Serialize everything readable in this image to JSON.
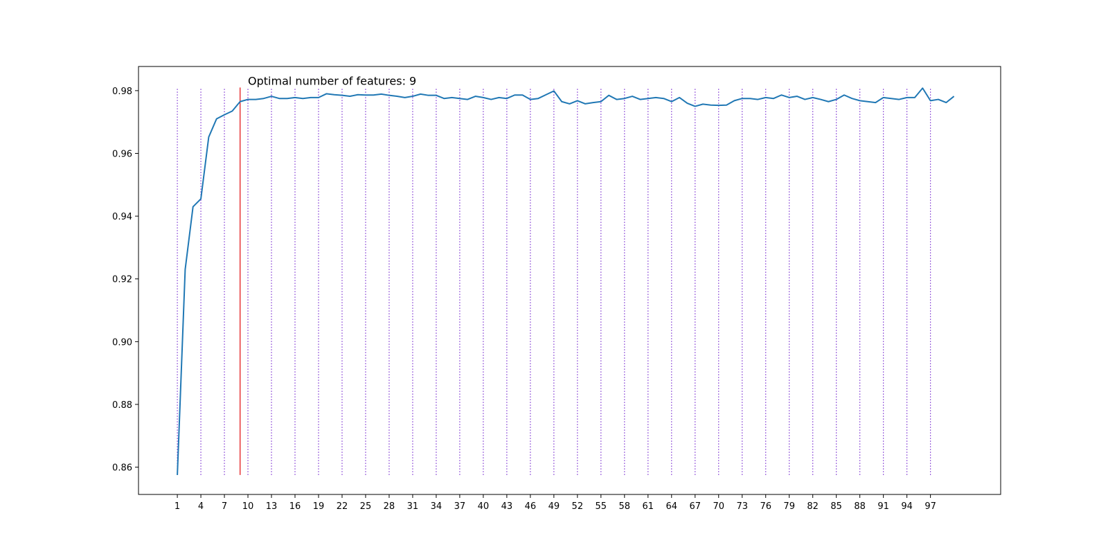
{
  "chart_data": {
    "type": "line",
    "title": "",
    "xlabel": "",
    "ylabel": "",
    "xlim": [
      -3.95,
      105.95
    ],
    "ylim": [
      0.8513,
      0.9877
    ],
    "x_ticks": [
      1,
      4,
      7,
      10,
      13,
      16,
      19,
      22,
      25,
      28,
      31,
      34,
      37,
      40,
      43,
      46,
      49,
      52,
      55,
      58,
      61,
      64,
      67,
      70,
      73,
      76,
      79,
      82,
      85,
      88,
      91,
      94,
      97
    ],
    "y_ticks": [
      0.86,
      0.88,
      0.9,
      0.92,
      0.94,
      0.96,
      0.98
    ],
    "y_tick_labels": [
      "0.86",
      "0.88",
      "0.90",
      "0.92",
      "0.94",
      "0.96",
      "0.98"
    ],
    "grid": false,
    "series": [
      {
        "color": "#1f77b4",
        "x": [
          1,
          2,
          3,
          4,
          5,
          6,
          7,
          8,
          9,
          10,
          11,
          12,
          13,
          14,
          15,
          16,
          17,
          18,
          19,
          20,
          21,
          22,
          23,
          24,
          25,
          26,
          27,
          28,
          29,
          30,
          31,
          32,
          33,
          34,
          35,
          36,
          37,
          38,
          39,
          40,
          41,
          42,
          43,
          44,
          45,
          46,
          47,
          48,
          49,
          50,
          51,
          52,
          53,
          54,
          55,
          56,
          57,
          58,
          59,
          60,
          61,
          62,
          63,
          64,
          65,
          66,
          67,
          68,
          69,
          70,
          71,
          72,
          73,
          74,
          75,
          76,
          77,
          78,
          79,
          80,
          81,
          82,
          83,
          84,
          85,
          86,
          87,
          88,
          89,
          90,
          91,
          92,
          93,
          94,
          95,
          96,
          97,
          98,
          99,
          100
        ],
        "y": [
          0.8575,
          0.923,
          0.943,
          0.9455,
          0.9652,
          0.971,
          0.9723,
          0.9735,
          0.9765,
          0.9772,
          0.9772,
          0.9775,
          0.9782,
          0.9775,
          0.9775,
          0.9778,
          0.9775,
          0.9778,
          0.9778,
          0.979,
          0.9787,
          0.9785,
          0.9782,
          0.9787,
          0.9786,
          0.9786,
          0.9789,
          0.9785,
          0.9782,
          0.9778,
          0.9782,
          0.9789,
          0.9785,
          0.9785,
          0.9775,
          0.9778,
          0.9775,
          0.9772,
          0.9782,
          0.9778,
          0.9772,
          0.9778,
          0.9775,
          0.9786,
          0.9786,
          0.9772,
          0.9775,
          0.9787,
          0.9799,
          0.9765,
          0.9758,
          0.9768,
          0.9758,
          0.9762,
          0.9765,
          0.9785,
          0.9772,
          0.9775,
          0.9782,
          0.9772,
          0.9775,
          0.9778,
          0.9775,
          0.9765,
          0.9778,
          0.976,
          0.975,
          0.9757,
          0.9754,
          0.9753,
          0.9754,
          0.9768,
          0.9775,
          0.9775,
          0.9772,
          0.9778,
          0.9775,
          0.9786,
          0.9778,
          0.9782,
          0.9772,
          0.9778,
          0.9772,
          0.9765,
          0.9772,
          0.9786,
          0.9775,
          0.9768,
          0.9765,
          0.9762,
          0.9778,
          0.9775,
          0.9772,
          0.9778,
          0.9778,
          0.9808,
          0.9768,
          0.9772,
          0.9762,
          0.9782
        ]
      }
    ],
    "vertical_lines": {
      "positions": [
        1,
        4,
        7,
        10,
        13,
        16,
        19,
        22,
        25,
        28,
        31,
        34,
        37,
        40,
        43,
        46,
        49,
        52,
        55,
        58,
        61,
        64,
        67,
        70,
        73,
        76,
        79,
        82,
        85,
        88,
        91,
        94,
        97
      ],
      "style": "dotted",
      "color": "#7b2fd1",
      "ymin": 0.8575,
      "ymax": 0.981
    },
    "optimal_line": {
      "x": 9,
      "color": "#e41a1c",
      "ymin": 0.8575,
      "ymax": 0.981
    },
    "annotation": {
      "text": "Optimal number of features: 9",
      "x": 10,
      "y": 0.981
    }
  }
}
